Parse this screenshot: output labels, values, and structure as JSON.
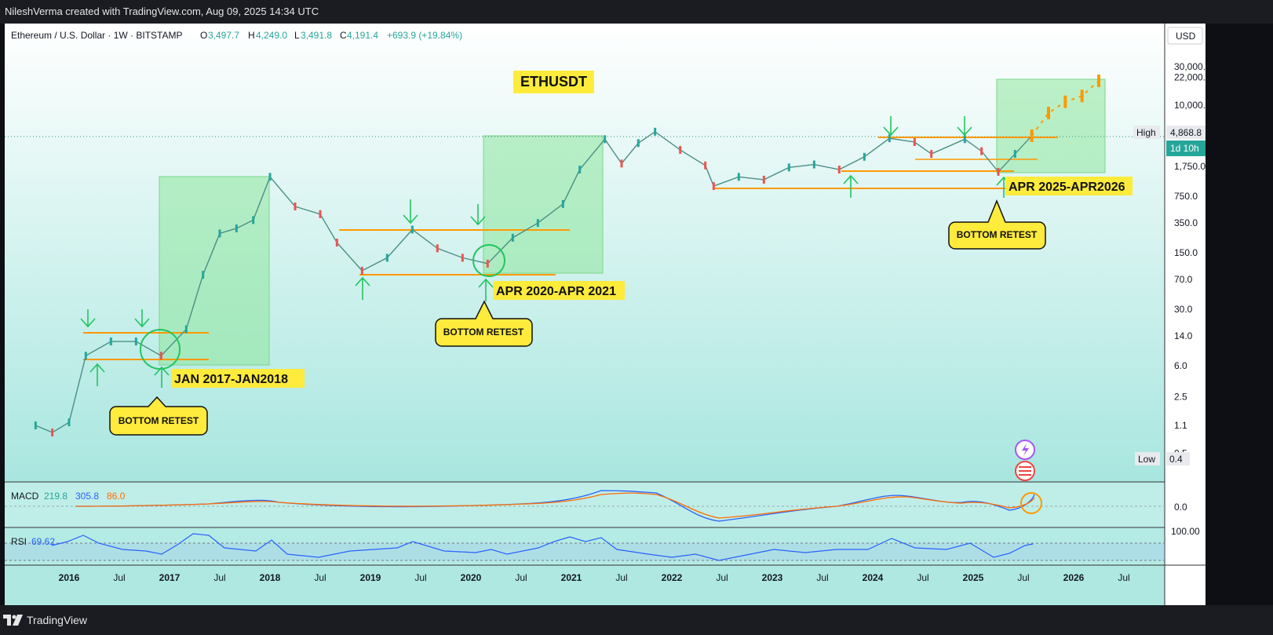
{
  "header": {
    "attribution": "NileshVerma created with TradingView.com, Aug 09, 2025 14:34 UTC"
  },
  "legend": {
    "symbol": "Ethereum / U.S. Dollar · 1W · BITSTAMP",
    "open_label": "O",
    "open": "3,497.7",
    "high_label": "H",
    "high": "4,249.0",
    "low_label": "L",
    "low": "3,491.8",
    "close_label": "C",
    "close": "4,191.4",
    "change": "+693.9 (+19.84%)"
  },
  "currency": "USD",
  "colors": {
    "up": "#26a69a",
    "down": "#ef5350",
    "accent_yellow": "#ffeb3b",
    "green_box": "#b9f2c4",
    "orange_line": "#ff9800",
    "arrow_green": "#22c55e",
    "macd": "#2962ff",
    "signal": "#ff6d00",
    "rsi": "#2962ff"
  },
  "annotations": {
    "title": "ETHUSDT",
    "label_1": "JAN 2017-JAN2018",
    "label_2": "APR 2020-APR 2021",
    "label_3": "APR 2025-APR2026",
    "callout": "BOTTOM RETEST"
  },
  "price_labels": {
    "high_tag": "High",
    "high_value": "4,868.8",
    "countdown": "1d 10h",
    "low_tag": "Low",
    "low_value": "0.4"
  },
  "indicators": {
    "macd_label": "MACD",
    "macd_v1": "219.8",
    "macd_v2": "305.8",
    "macd_v3": "86.0",
    "macd_zero": "0.0",
    "rsi_label": "RSI",
    "rsi_value": "69.62",
    "rsi_top": "100.00"
  },
  "footer": {
    "brand": "TradingView"
  },
  "chart_data": {
    "type": "line",
    "scale": "log",
    "y_ticks": [
      "30,000.0",
      "22,000.0",
      "10,000.0",
      "1,750.0",
      "750.0",
      "350.0",
      "150.0",
      "70.0",
      "30.0",
      "14.0",
      "6.0",
      "2.5",
      "1.1",
      "0.5"
    ],
    "x_ticks": [
      "2016",
      "Jul",
      "2017",
      "Jul",
      "2018",
      "Jul",
      "2019",
      "Jul",
      "2020",
      "Jul",
      "2021",
      "Jul",
      "2022",
      "Jul",
      "2023",
      "Jul",
      "2024",
      "Jul",
      "2025",
      "Jul",
      "2026",
      "Jul"
    ],
    "series": [
      {
        "x": [
          "2015-09",
          "2015-11",
          "2016-01",
          "2016-03",
          "2016-06",
          "2016-09",
          "2016-12",
          "2017-03",
          "2017-05",
          "2017-07",
          "2017-09",
          "2017-11",
          "2018-01",
          "2018-04",
          "2018-07",
          "2018-09",
          "2018-12",
          "2019-03",
          "2019-06",
          "2019-09",
          "2019-12",
          "2020-03",
          "2020-06",
          "2020-09",
          "2020-12",
          "2021-02",
          "2021-05",
          "2021-07",
          "2021-09",
          "2021-11",
          "2022-02",
          "2022-05",
          "2022-06",
          "2022-09",
          "2022-12",
          "2023-03",
          "2023-06",
          "2023-09",
          "2023-12",
          "2024-03",
          "2024-06",
          "2024-08",
          "2024-12",
          "2025-02",
          "2025-04",
          "2025-06",
          "2025-08"
        ],
        "values": [
          1.1,
          0.9,
          1.2,
          8,
          12,
          12,
          8,
          17,
          80,
          260,
          300,
          380,
          1300,
          560,
          450,
          200,
          90,
          130,
          290,
          170,
          130,
          110,
          230,
          350,
          600,
          1600,
          3800,
          1900,
          3400,
          4700,
          2800,
          1800,
          1000,
          1300,
          1200,
          1700,
          1850,
          1600,
          2300,
          3900,
          3500,
          2500,
          3800,
          2700,
          1500,
          2500,
          4191.4
        ]
      }
    ],
    "projection": {
      "x": [
        "2025-08",
        "2025-10",
        "2025-12",
        "2026-02",
        "2026-04"
      ],
      "values": [
        4191.4,
        8000,
        11000,
        13000,
        20000
      ]
    },
    "shaded_regions": [
      {
        "from": "2017-01",
        "to": "2018-01"
      },
      {
        "from": "2020-04",
        "to": "2021-04"
      },
      {
        "from": "2025-04",
        "to": "2026-04"
      }
    ]
  }
}
